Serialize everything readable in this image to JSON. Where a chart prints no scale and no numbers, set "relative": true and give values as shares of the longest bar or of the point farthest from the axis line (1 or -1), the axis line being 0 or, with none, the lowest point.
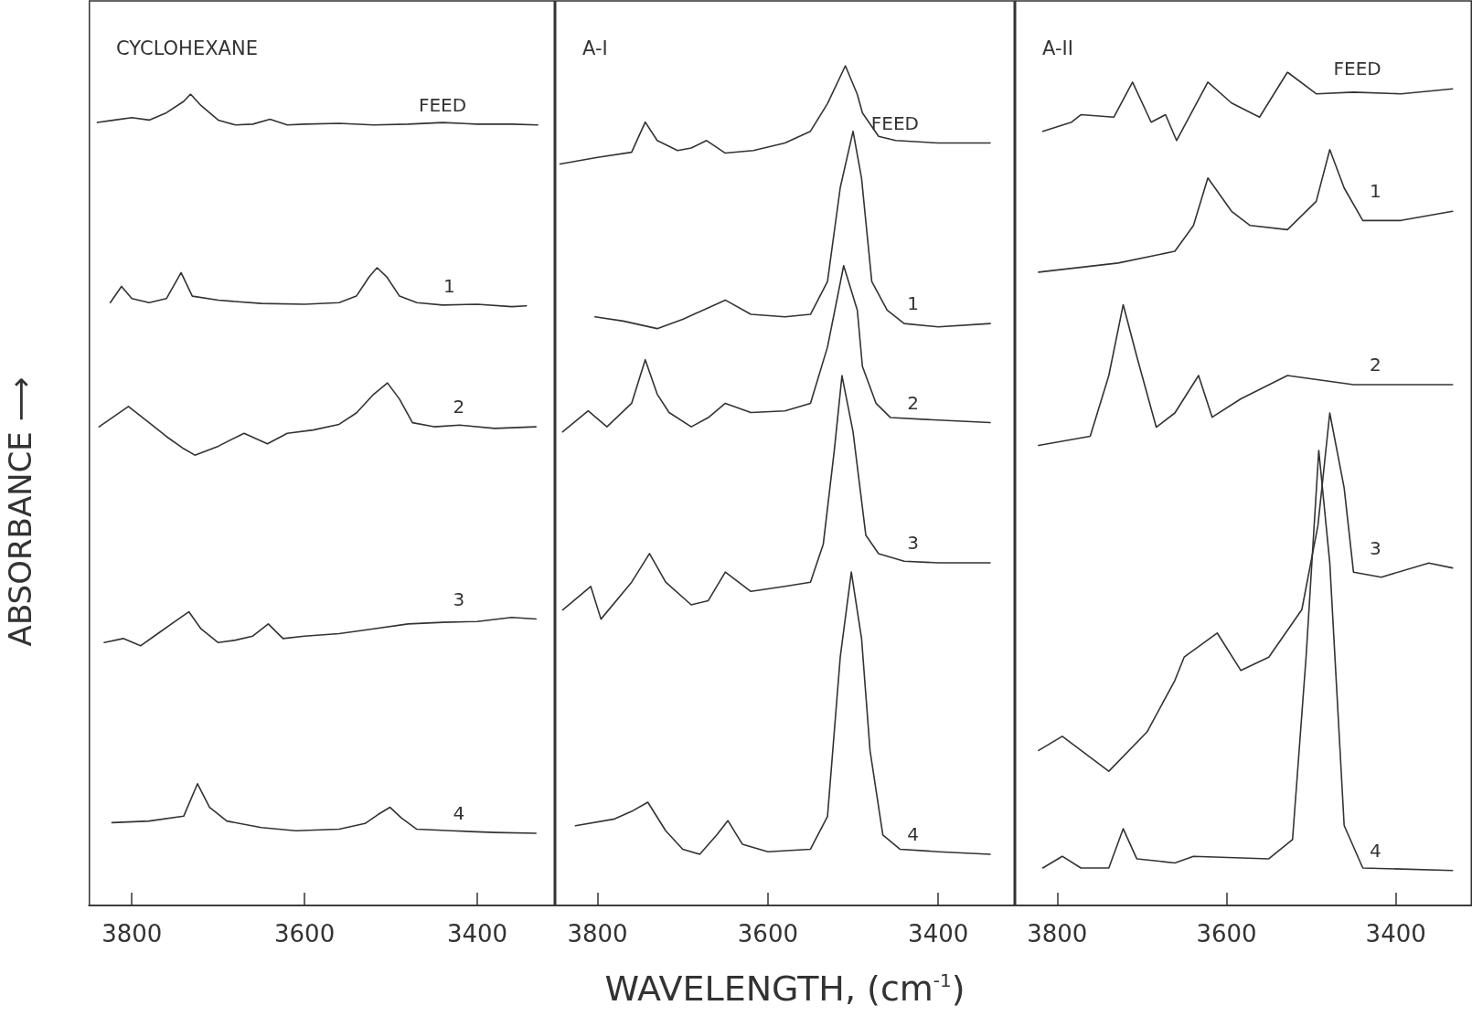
{
  "chart_data": [
    {
      "type": "line",
      "relative": true,
      "title": "CYCLOHEXANE",
      "ylabel": "ABSORBANCE ⟶",
      "xlim": [
        3850,
        3310
      ],
      "xticks": [
        3800,
        3600,
        3400
      ],
      "grid": false,
      "legend": false,
      "marker": "none",
      "line_style": "solid",
      "series": [
        {
          "name": "FEED",
          "color": "#333333",
          "x": [
            3840,
            3820,
            3800,
            3780,
            3760,
            3740,
            3732,
            3720,
            3700,
            3680,
            3660,
            3640,
            3620,
            3600,
            3560,
            3520,
            3480,
            3440,
            3400,
            3360,
            3330
          ],
          "values": [
            0.965,
            0.968,
            0.971,
            0.968,
            0.977,
            0.991,
            1.0,
            0.986,
            0.968,
            0.962,
            0.963,
            0.969,
            0.962,
            0.963,
            0.964,
            0.962,
            0.963,
            0.965,
            0.963,
            0.963,
            0.962
          ]
        },
        {
          "name": "1",
          "color": "#333333",
          "x": [
            3825,
            3812,
            3800,
            3780,
            3760,
            3743,
            3730,
            3700,
            3650,
            3600,
            3560,
            3540,
            3525,
            3516,
            3505,
            3490,
            3470,
            3440,
            3400,
            3360,
            3343
          ],
          "values": [
            0.743,
            0.763,
            0.748,
            0.743,
            0.748,
            0.78,
            0.751,
            0.746,
            0.742,
            0.741,
            0.743,
            0.751,
            0.775,
            0.786,
            0.775,
            0.751,
            0.743,
            0.74,
            0.741,
            0.738,
            0.739
          ]
        },
        {
          "name": "2",
          "color": "#333333",
          "x": [
            3838,
            3804,
            3780,
            3760,
            3740,
            3727,
            3700,
            3670,
            3643,
            3620,
            3590,
            3560,
            3540,
            3520,
            3504,
            3490,
            3475,
            3450,
            3420,
            3380,
            3332
          ],
          "values": [
            0.59,
            0.615,
            0.595,
            0.578,
            0.563,
            0.555,
            0.566,
            0.582,
            0.569,
            0.582,
            0.586,
            0.593,
            0.607,
            0.63,
            0.644,
            0.624,
            0.595,
            0.59,
            0.592,
            0.588,
            0.59
          ]
        },
        {
          "name": "3",
          "color": "#333333",
          "x": [
            3832,
            3810,
            3790,
            3770,
            3750,
            3734,
            3720,
            3700,
            3680,
            3660,
            3642,
            3625,
            3600,
            3560,
            3520,
            3480,
            3440,
            3400,
            3360,
            3332
          ],
          "values": [
            0.324,
            0.329,
            0.32,
            0.335,
            0.35,
            0.362,
            0.341,
            0.324,
            0.327,
            0.332,
            0.347,
            0.329,
            0.332,
            0.335,
            0.341,
            0.347,
            0.349,
            0.35,
            0.355,
            0.353
          ]
        },
        {
          "name": "4",
          "color": "#333333",
          "x": [
            3823,
            3780,
            3740,
            3724,
            3710,
            3690,
            3650,
            3610,
            3560,
            3530,
            3515,
            3501,
            3488,
            3470,
            3430,
            3380,
            3332
          ],
          "values": [
            0.102,
            0.104,
            0.11,
            0.15,
            0.121,
            0.104,
            0.096,
            0.092,
            0.094,
            0.101,
            0.112,
            0.121,
            0.108,
            0.094,
            0.092,
            0.09,
            0.089
          ]
        }
      ]
    },
    {
      "type": "line",
      "relative": true,
      "title": "A-I",
      "xlabel": "WAVELENGTH, (cm$^{-1}$)",
      "xlim": [
        3850,
        3310
      ],
      "xticks": [
        3800,
        3600,
        3400
      ],
      "grid": false,
      "legend": false,
      "marker": "none",
      "line_style": "solid",
      "series": [
        {
          "name": "FEED",
          "color": "#333333",
          "x": [
            3844,
            3800,
            3760,
            3744,
            3730,
            3706,
            3690,
            3672,
            3650,
            3617,
            3580,
            3550,
            3530,
            3509,
            3495,
            3489,
            3470,
            3450,
            3400,
            3339
          ],
          "values": [
            0.883,
            0.891,
            0.897,
            0.933,
            0.911,
            0.899,
            0.902,
            0.911,
            0.896,
            0.899,
            0.908,
            0.922,
            0.955,
            1.0,
            0.966,
            0.944,
            0.916,
            0.911,
            0.908,
            0.908
          ]
        },
        {
          "name": "1",
          "color": "#333333",
          "x": [
            3803,
            3770,
            3730,
            3700,
            3650,
            3620,
            3580,
            3550,
            3530,
            3515,
            3500,
            3490,
            3478,
            3460,
            3440,
            3400,
            3339
          ],
          "values": [
            0.701,
            0.696,
            0.687,
            0.698,
            0.721,
            0.704,
            0.701,
            0.704,
            0.743,
            0.855,
            0.922,
            0.866,
            0.743,
            0.709,
            0.693,
            0.689,
            0.693
          ]
        },
        {
          "name": "2",
          "color": "#333333",
          "x": [
            3841,
            3811,
            3789,
            3760,
            3744,
            3730,
            3716,
            3690,
            3670,
            3650,
            3620,
            3580,
            3550,
            3530,
            3511,
            3495,
            3489,
            3473,
            3456,
            3400,
            3339
          ],
          "values": [
            0.564,
            0.589,
            0.57,
            0.598,
            0.65,
            0.609,
            0.587,
            0.57,
            0.581,
            0.598,
            0.587,
            0.589,
            0.598,
            0.665,
            0.762,
            0.709,
            0.642,
            0.598,
            0.581,
            0.578,
            0.575
          ]
        },
        {
          "name": "3",
          "color": "#333333",
          "x": [
            3841,
            3808,
            3796,
            3760,
            3739,
            3720,
            3690,
            3670,
            3650,
            3620,
            3580,
            3550,
            3535,
            3522,
            3513,
            3500,
            3485,
            3470,
            3440,
            3400,
            3339
          ],
          "values": [
            0.352,
            0.38,
            0.341,
            0.385,
            0.419,
            0.385,
            0.358,
            0.363,
            0.397,
            0.374,
            0.38,
            0.385,
            0.43,
            0.542,
            0.631,
            0.564,
            0.441,
            0.419,
            0.41,
            0.408,
            0.408
          ]
        },
        {
          "name": "4",
          "color": "#333333",
          "x": [
            3826,
            3780,
            3760,
            3741,
            3720,
            3700,
            3680,
            3660,
            3647,
            3630,
            3600,
            3550,
            3530,
            3515,
            3502,
            3490,
            3480,
            3465,
            3445,
            3400,
            3339
          ],
          "values": [
            0.095,
            0.103,
            0.112,
            0.123,
            0.089,
            0.067,
            0.061,
            0.084,
            0.101,
            0.073,
            0.064,
            0.067,
            0.106,
            0.296,
            0.397,
            0.318,
            0.184,
            0.084,
            0.067,
            0.064,
            0.061
          ]
        }
      ]
    },
    {
      "type": "line",
      "relative": true,
      "title": "A-II",
      "xlim": [
        3850,
        3310
      ],
      "xticks": [
        3800,
        3600,
        3400
      ],
      "grid": false,
      "legend": false,
      "marker": "none",
      "line_style": "solid",
      "series": [
        {
          "name": "FEED",
          "color": "#333333",
          "x": [
            3817,
            3783,
            3772,
            3733,
            3711,
            3689,
            3672,
            3659,
            3622,
            3594,
            3561,
            3528,
            3494,
            3450,
            3394,
            3333
          ],
          "values": [
            0.929,
            0.94,
            0.949,
            0.946,
            0.988,
            0.94,
            0.949,
            0.918,
            0.988,
            0.963,
            0.946,
            1.0,
            0.974,
            0.976,
            0.974,
            0.98
          ]
        },
        {
          "name": "1",
          "color": "#333333",
          "x": [
            3822,
            3728,
            3661,
            3639,
            3622,
            3594,
            3572,
            3528,
            3494,
            3478,
            3461,
            3439,
            3394,
            3333
          ],
          "values": [
            0.76,
            0.771,
            0.785,
            0.816,
            0.873,
            0.833,
            0.816,
            0.811,
            0.845,
            0.907,
            0.861,
            0.822,
            0.822,
            0.833
          ]
        },
        {
          "name": "2",
          "color": "#333333",
          "x": [
            3822,
            3761,
            3739,
            3722,
            3706,
            3683,
            3661,
            3633,
            3617,
            3583,
            3528,
            3450,
            3333
          ],
          "values": [
            0.552,
            0.563,
            0.636,
            0.721,
            0.659,
            0.574,
            0.591,
            0.636,
            0.586,
            0.608,
            0.636,
            0.625,
            0.625
          ]
        },
        {
          "name": "3",
          "color": "#333333",
          "x": [
            3822,
            3794,
            3739,
            3694,
            3661,
            3650,
            3611,
            3583,
            3550,
            3511,
            3492,
            3478,
            3461,
            3450,
            3417,
            3361,
            3333
          ],
          "values": [
            0.186,
            0.203,
            0.161,
            0.208,
            0.27,
            0.298,
            0.327,
            0.282,
            0.298,
            0.355,
            0.456,
            0.591,
            0.501,
            0.4,
            0.394,
            0.411,
            0.405
          ]
        },
        {
          "name": "4",
          "color": "#333333",
          "x": [
            3817,
            3794,
            3772,
            3739,
            3722,
            3706,
            3661,
            3639,
            3550,
            3522,
            3506,
            3491,
            3478,
            3461,
            3439,
            3333
          ],
          "values": [
            0.045,
            0.059,
            0.045,
            0.045,
            0.092,
            0.056,
            0.051,
            0.059,
            0.056,
            0.079,
            0.298,
            0.546,
            0.411,
            0.096,
            0.045,
            0.042
          ]
        }
      ]
    }
  ]
}
